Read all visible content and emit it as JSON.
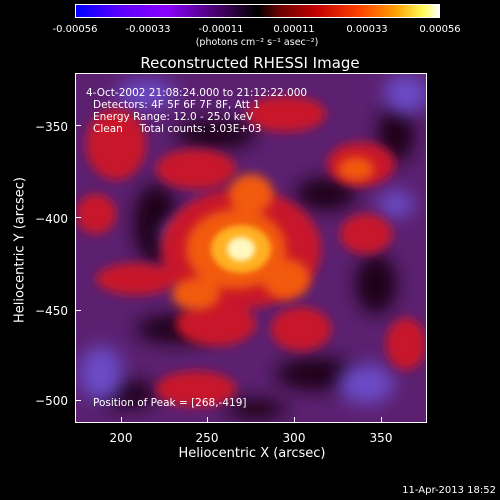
{
  "colorbar": {
    "ticks": [
      "-0.00056",
      "-0.00033",
      "-0.00011",
      "0.00011",
      "0.00033",
      "0.00056"
    ],
    "unit": "(photons cm⁻² s⁻¹ asec⁻²)"
  },
  "title": "Reconstructed RHESSI Image",
  "info": {
    "time": "4-Oct-2002 21:08:24.000 to 21:12:22.000",
    "detectors": "Detectors: 4F 5F 6F 7F 8F, Att 1",
    "energy": "Energy Range: 12.0 - 25.0 keV",
    "clean": "Clean     Total counts: 3.03E+03",
    "peak": "Position of Peak = [268,-419]"
  },
  "axes": {
    "xlabel": "Heliocentric X (arcsec)",
    "ylabel": "Heliocentric Y (arcsec)",
    "xticks": [
      "200",
      "250",
      "300",
      "350"
    ],
    "yticks": [
      "−350",
      "−400",
      "−450",
      "−500"
    ]
  },
  "timestamp": "11-Apr-2013 18:52"
}
